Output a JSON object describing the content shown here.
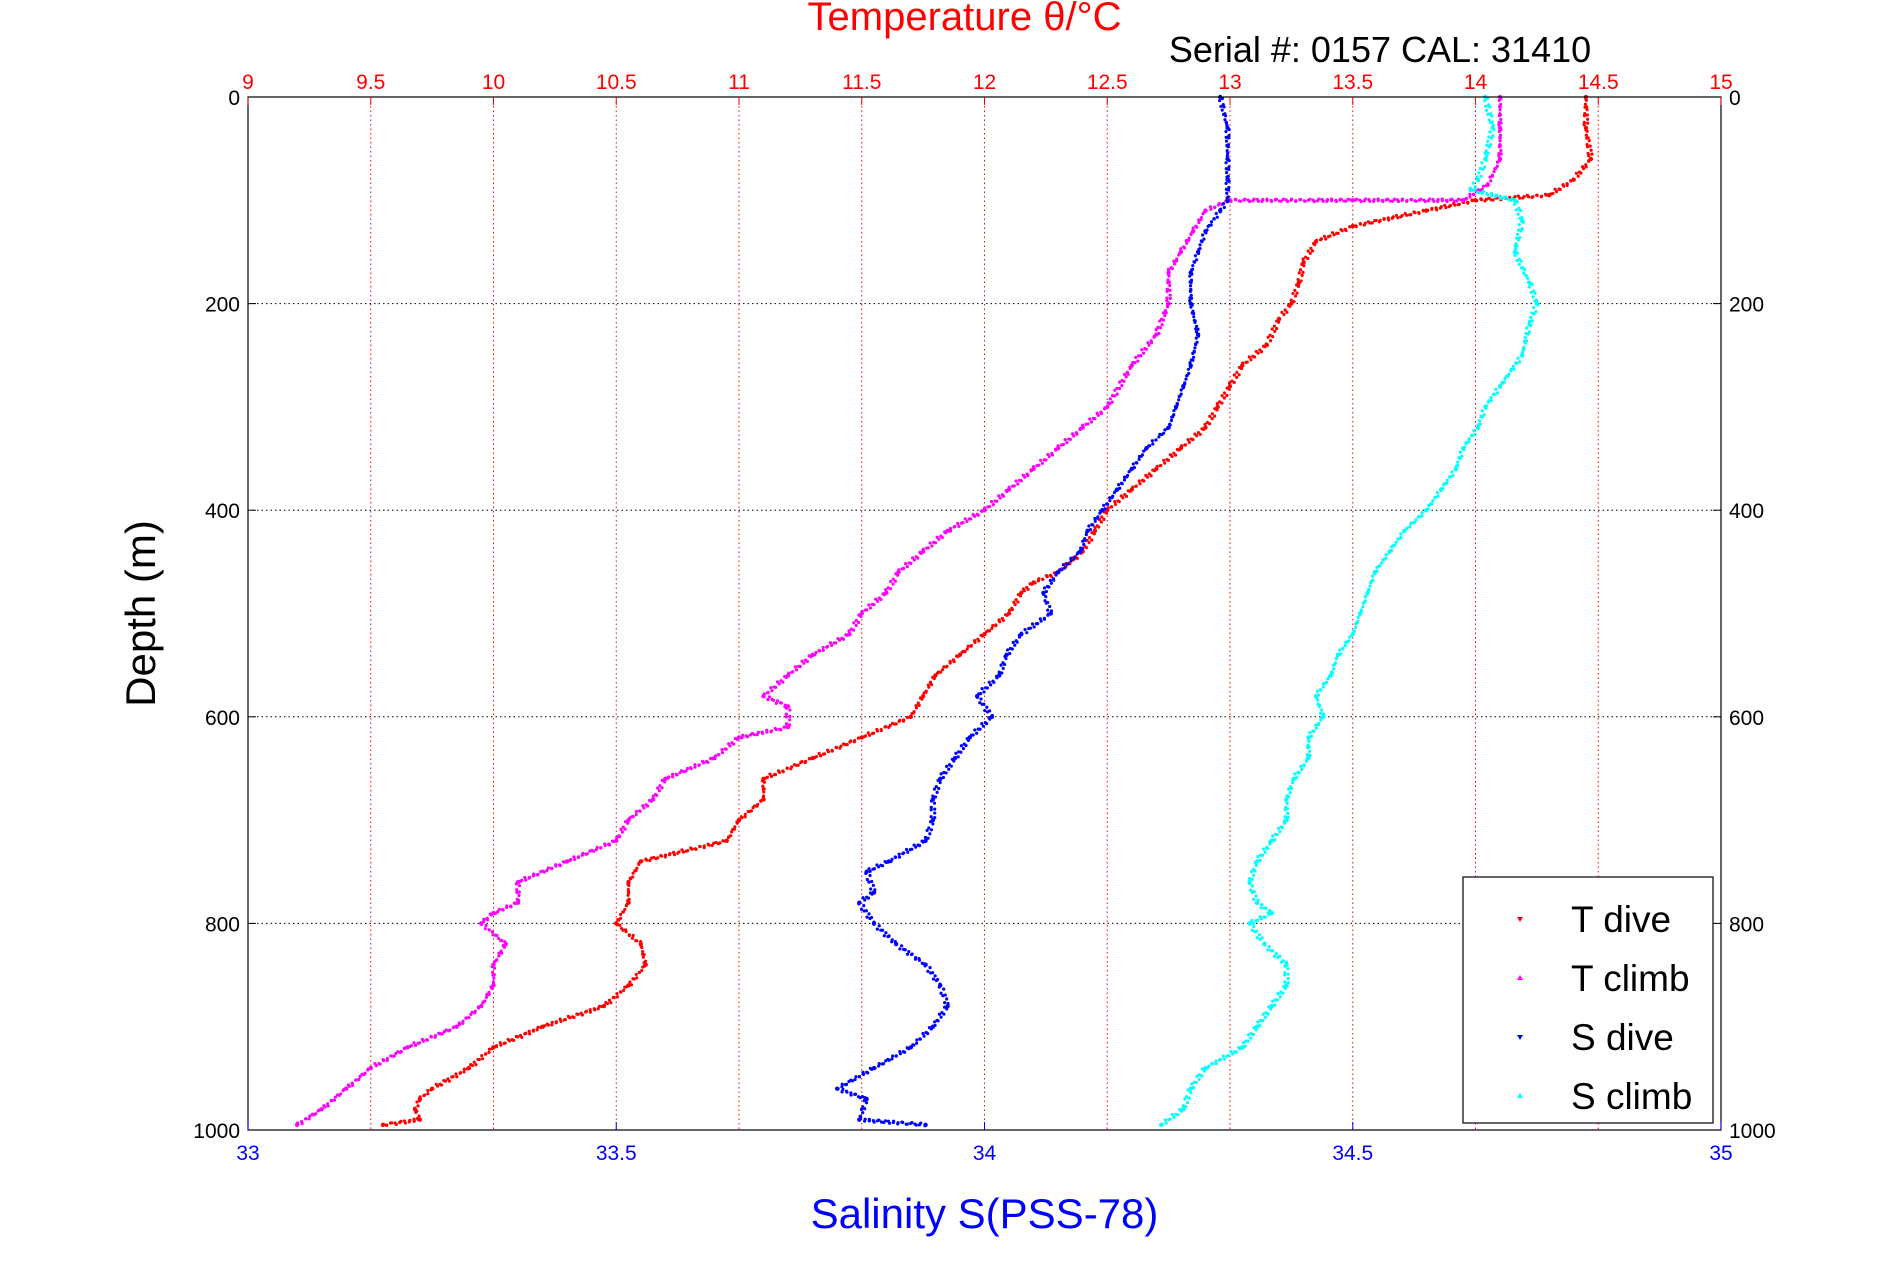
{
  "chart_data": {
    "type": "scatter",
    "title": "Temperature θ/°C",
    "subtitle": "Serial #: 0157  CAL: 31410",
    "xlabel": "Salinity S(PSS-78)",
    "ylabel": "Depth (m)",
    "top_axis": {
      "label": "Temperature θ/°C",
      "range": [
        9,
        15
      ],
      "ticks": [
        "9",
        "9.5",
        "10",
        "10.5",
        "11",
        "11.5",
        "12",
        "12.5",
        "13",
        "13.5",
        "14",
        "14.5",
        "15"
      ],
      "color": "#ff0000"
    },
    "bottom_axis": {
      "label": "Salinity S(PSS-78)",
      "range": [
        33,
        35
      ],
      "ticks": [
        "33",
        "33.5",
        "34",
        "34.5",
        "35"
      ],
      "color": "#0000ff"
    },
    "y_axis": {
      "range": [
        0,
        1000
      ],
      "reversed": true,
      "ticks": [
        "0",
        "200",
        "400",
        "600",
        "800",
        "1000"
      ]
    },
    "grid": true,
    "legend_position": "bottom-right",
    "series": [
      {
        "name": "T dive",
        "axis": "temperature",
        "color": "#ff0000",
        "points": [
          [
            14.45,
            0
          ],
          [
            14.45,
            30
          ],
          [
            14.47,
            60
          ],
          [
            14.4,
            80
          ],
          [
            14.3,
            95
          ],
          [
            14.0,
            100
          ],
          [
            13.8,
            110
          ],
          [
            13.5,
            125
          ],
          [
            13.35,
            140
          ],
          [
            13.3,
            160
          ],
          [
            13.28,
            180
          ],
          [
            13.25,
            200
          ],
          [
            13.2,
            215
          ],
          [
            13.15,
            240
          ],
          [
            13.05,
            260
          ],
          [
            13.0,
            280
          ],
          [
            12.95,
            300
          ],
          [
            12.9,
            320
          ],
          [
            12.8,
            340
          ],
          [
            12.7,
            360
          ],
          [
            12.6,
            380
          ],
          [
            12.5,
            400
          ],
          [
            12.45,
            420
          ],
          [
            12.4,
            440
          ],
          [
            12.3,
            460
          ],
          [
            12.2,
            470
          ],
          [
            12.15,
            480
          ],
          [
            12.1,
            500
          ],
          [
            12.0,
            520
          ],
          [
            11.9,
            540
          ],
          [
            11.8,
            560
          ],
          [
            11.75,
            580
          ],
          [
            11.7,
            600
          ],
          [
            11.5,
            620
          ],
          [
            11.3,
            640
          ],
          [
            11.1,
            660
          ],
          [
            11.1,
            680
          ],
          [
            11.0,
            700
          ],
          [
            10.95,
            720
          ],
          [
            10.6,
            740
          ],
          [
            10.55,
            760
          ],
          [
            10.55,
            780
          ],
          [
            10.5,
            800
          ],
          [
            10.6,
            820
          ],
          [
            10.62,
            840
          ],
          [
            10.55,
            860
          ],
          [
            10.45,
            880
          ],
          [
            10.2,
            900
          ],
          [
            10.0,
            920
          ],
          [
            9.9,
            940
          ],
          [
            9.75,
            960
          ],
          [
            9.7,
            970
          ],
          [
            9.68,
            980
          ],
          [
            9.7,
            990
          ],
          [
            9.55,
            995
          ]
        ]
      },
      {
        "name": "T climb",
        "axis": "temperature",
        "color": "#ff00ff",
        "points": [
          [
            14.1,
            0
          ],
          [
            14.1,
            30
          ],
          [
            14.1,
            60
          ],
          [
            14.05,
            85
          ],
          [
            13.95,
            100
          ],
          [
            13.5,
            100
          ],
          [
            13.0,
            100
          ],
          [
            12.9,
            110
          ],
          [
            12.85,
            130
          ],
          [
            12.8,
            150
          ],
          [
            12.75,
            170
          ],
          [
            12.75,
            200
          ],
          [
            12.7,
            230
          ],
          [
            12.6,
            260
          ],
          [
            12.5,
            300
          ],
          [
            12.4,
            320
          ],
          [
            12.3,
            340
          ],
          [
            12.2,
            360
          ],
          [
            12.1,
            380
          ],
          [
            12.0,
            400
          ],
          [
            11.85,
            420
          ],
          [
            11.75,
            440
          ],
          [
            11.65,
            460
          ],
          [
            11.6,
            480
          ],
          [
            11.5,
            500
          ],
          [
            11.45,
            520
          ],
          [
            11.3,
            540
          ],
          [
            11.2,
            560
          ],
          [
            11.1,
            580
          ],
          [
            11.2,
            590
          ],
          [
            11.2,
            610
          ],
          [
            11.0,
            620
          ],
          [
            10.9,
            640
          ],
          [
            10.7,
            660
          ],
          [
            10.65,
            680
          ],
          [
            10.55,
            700
          ],
          [
            10.5,
            720
          ],
          [
            10.3,
            740
          ],
          [
            10.1,
            760
          ],
          [
            10.1,
            780
          ],
          [
            10.0,
            790
          ],
          [
            9.95,
            800
          ],
          [
            10.05,
            820
          ],
          [
            10.0,
            840
          ],
          [
            10.0,
            860
          ],
          [
            9.95,
            880
          ],
          [
            9.85,
            900
          ],
          [
            9.65,
            920
          ],
          [
            9.5,
            940
          ],
          [
            9.4,
            960
          ],
          [
            9.3,
            980
          ],
          [
            9.2,
            995
          ]
        ]
      },
      {
        "name": "S dive",
        "axis": "salinity",
        "color": "#0000ff",
        "points": [
          [
            34.32,
            0
          ],
          [
            34.33,
            30
          ],
          [
            34.33,
            60
          ],
          [
            34.33,
            80
          ],
          [
            34.33,
            100
          ],
          [
            34.32,
            110
          ],
          [
            34.3,
            130
          ],
          [
            34.29,
            150
          ],
          [
            34.28,
            170
          ],
          [
            34.28,
            200
          ],
          [
            34.29,
            230
          ],
          [
            34.28,
            260
          ],
          [
            34.27,
            280
          ],
          [
            34.26,
            300
          ],
          [
            34.25,
            320
          ],
          [
            34.22,
            340
          ],
          [
            34.2,
            360
          ],
          [
            34.18,
            380
          ],
          [
            34.16,
            400
          ],
          [
            34.14,
            420
          ],
          [
            34.13,
            440
          ],
          [
            34.1,
            460
          ],
          [
            34.08,
            480
          ],
          [
            34.09,
            500
          ],
          [
            34.05,
            520
          ],
          [
            34.03,
            540
          ],
          [
            34.02,
            560
          ],
          [
            33.99,
            580
          ],
          [
            34.01,
            600
          ],
          [
            33.98,
            620
          ],
          [
            33.96,
            640
          ],
          [
            33.94,
            660
          ],
          [
            33.93,
            680
          ],
          [
            33.93,
            700
          ],
          [
            33.92,
            720
          ],
          [
            33.87,
            740
          ],
          [
            33.84,
            750
          ],
          [
            33.85,
            770
          ],
          [
            33.83,
            780
          ],
          [
            33.85,
            800
          ],
          [
            33.88,
            820
          ],
          [
            33.92,
            840
          ],
          [
            33.94,
            860
          ],
          [
            33.95,
            880
          ],
          [
            33.93,
            900
          ],
          [
            33.9,
            920
          ],
          [
            33.85,
            940
          ],
          [
            33.8,
            960
          ],
          [
            33.84,
            970
          ],
          [
            33.83,
            990
          ],
          [
            33.92,
            995
          ]
        ]
      },
      {
        "name": "S climb",
        "axis": "salinity",
        "color": "#00ffff",
        "points": [
          [
            34.68,
            0
          ],
          [
            34.69,
            30
          ],
          [
            34.68,
            60
          ],
          [
            34.67,
            80
          ],
          [
            34.66,
            90
          ],
          [
            34.72,
            100
          ],
          [
            34.73,
            120
          ],
          [
            34.72,
            150
          ],
          [
            34.74,
            180
          ],
          [
            34.75,
            200
          ],
          [
            34.74,
            220
          ],
          [
            34.73,
            250
          ],
          [
            34.7,
            280
          ],
          [
            34.68,
            300
          ],
          [
            34.67,
            320
          ],
          [
            34.65,
            340
          ],
          [
            34.64,
            360
          ],
          [
            34.62,
            380
          ],
          [
            34.6,
            400
          ],
          [
            34.57,
            420
          ],
          [
            34.55,
            440
          ],
          [
            34.53,
            460
          ],
          [
            34.52,
            480
          ],
          [
            34.51,
            500
          ],
          [
            34.5,
            520
          ],
          [
            34.48,
            540
          ],
          [
            34.47,
            560
          ],
          [
            34.45,
            580
          ],
          [
            34.46,
            600
          ],
          [
            34.44,
            620
          ],
          [
            34.44,
            640
          ],
          [
            34.42,
            660
          ],
          [
            34.41,
            680
          ],
          [
            34.41,
            700
          ],
          [
            34.39,
            720
          ],
          [
            34.37,
            740
          ],
          [
            34.36,
            760
          ],
          [
            34.37,
            780
          ],
          [
            34.39,
            790
          ],
          [
            34.36,
            800
          ],
          [
            34.38,
            820
          ],
          [
            34.41,
            840
          ],
          [
            34.41,
            860
          ],
          [
            34.39,
            880
          ],
          [
            34.37,
            900
          ],
          [
            34.35,
            920
          ],
          [
            34.3,
            940
          ],
          [
            34.28,
            960
          ],
          [
            34.27,
            980
          ],
          [
            34.24,
            995
          ]
        ]
      }
    ]
  }
}
